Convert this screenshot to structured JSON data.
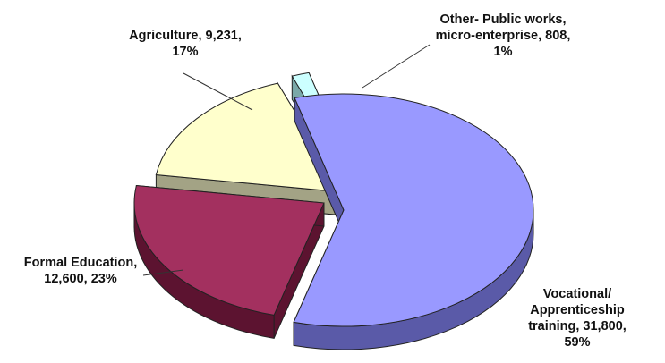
{
  "chart_data": {
    "type": "pie",
    "style": "3d-exploded",
    "slices": [
      {
        "category": "Vocational/ Apprenticeship training",
        "value": 31800,
        "percent": 59,
        "label_lines": [
          "Vocational/",
          "Apprenticeship",
          "training, 31,800,",
          "59%"
        ],
        "color": "#9999ff",
        "side_color": "#5a5aa8"
      },
      {
        "category": "Formal Education",
        "value": 12600,
        "percent": 23,
        "label_lines": [
          "Formal Education,",
          "12,600, 23%"
        ],
        "color": "#a3305f",
        "side_color": "#5c1330"
      },
      {
        "category": "Agriculture",
        "value": 9231,
        "percent": 17,
        "label_lines": [
          "Agriculture, 9,231,",
          "17%"
        ],
        "color": "#ffffcc",
        "side_color": "#a3a385"
      },
      {
        "category": "Other- Public works, micro-enterprise",
        "value": 808,
        "percent": 1,
        "label_lines": [
          "Other- Public works,",
          "micro-enterprise, 808,",
          "1%"
        ],
        "color": "#ccffff",
        "side_color": "#7aa8a8"
      }
    ]
  }
}
